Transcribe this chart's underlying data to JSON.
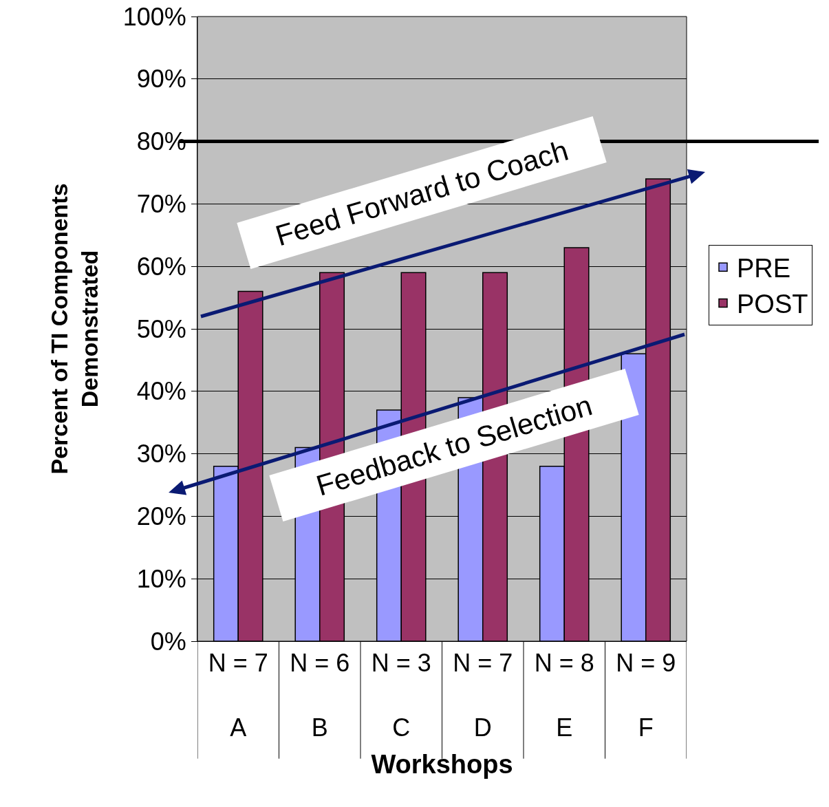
{
  "chart_data": {
    "type": "bar",
    "xlabel": "Workshops",
    "ylabel": "Percent of TI Components\nDemonstrated",
    "categories": [
      "N = 7\nA",
      "N = 6\nB",
      "N = 3\nC",
      "N = 7\nD",
      "N = 8\nE",
      "N = 9\nF"
    ],
    "series": [
      {
        "name": "PRE",
        "color": "#9999ff",
        "values": [
          28,
          31,
          37,
          39,
          28,
          46
        ]
      },
      {
        "name": "POST",
        "color": "#993366",
        "values": [
          56,
          59,
          59,
          59,
          63,
          74
        ]
      }
    ],
    "ylim": [
      0,
      100
    ],
    "yticks": [
      {
        "value": 0,
        "label": "0%"
      },
      {
        "value": 10,
        "label": "10%"
      },
      {
        "value": 20,
        "label": "20%"
      },
      {
        "value": 30,
        "label": "30%"
      },
      {
        "value": 40,
        "label": "40%"
      },
      {
        "value": 50,
        "label": "50%"
      },
      {
        "value": 60,
        "label": "60%"
      },
      {
        "value": 70,
        "label": "70%"
      },
      {
        "value": 80,
        "label": "80%"
      },
      {
        "value": 90,
        "label": "90%"
      },
      {
        "value": 100,
        "label": "100%"
      }
    ],
    "ref_lines": [
      {
        "axis": "y",
        "value": 80,
        "color": "#000000"
      }
    ],
    "annotations": [
      "Feed Forward to Coach",
      "Feedback to Selection"
    ],
    "grid": "y",
    "legend": "right"
  }
}
